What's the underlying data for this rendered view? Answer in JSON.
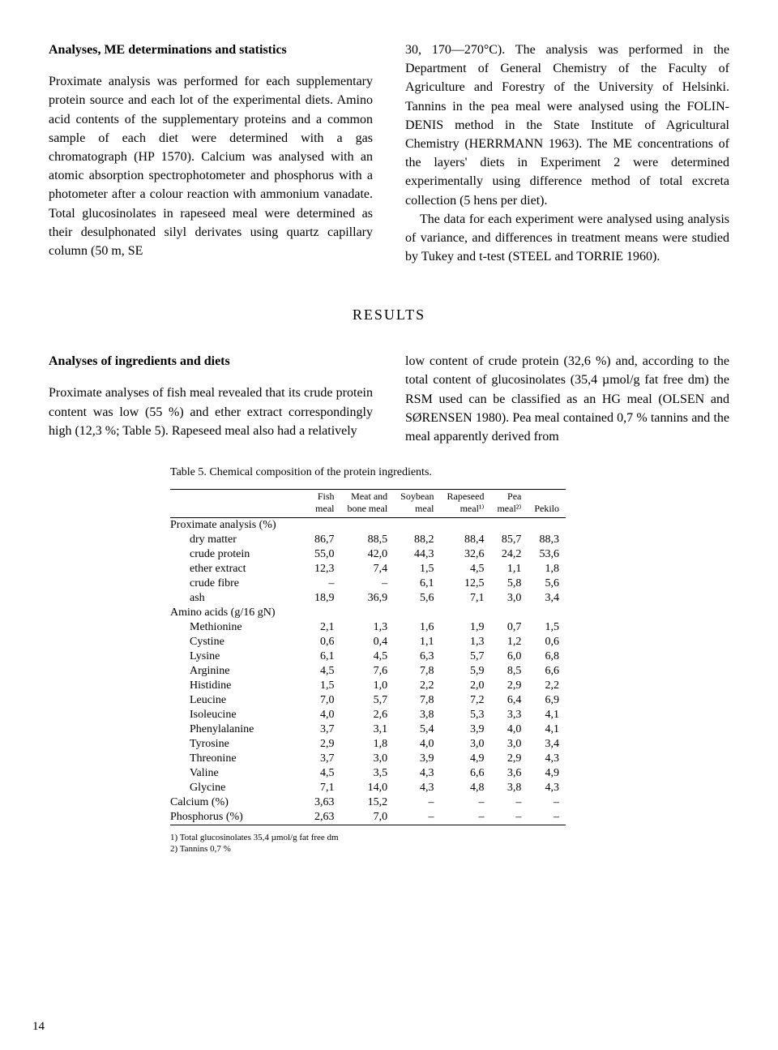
{
  "heading1": "Analyses, ME determinations and statistics",
  "para1a": "Proximate analysis was performed for each supplementary protein source and each lot of the experimental diets. Amino acid contents of the supplementary proteins and a common sample of each diet were determined with a gas chromatograph (HP 1570). Calcium was analysed with an atomic absorption spectrophotometer and phosphorus with a photometer after a colour reaction with ammonium vanadate. Total glucosinolates in rapeseed meal were determined as their desulphonated silyl derivates using quartz capillary column (50 m, SE",
  "para1b_part1": "30, 170—270°C). The analysis was performed in the Department of General Chemistry of the Faculty of Agriculture and Forestry of the University of Helsinki. Tannins in the pea meal were analysed using the F",
  "para1b_part2": "OLIN-DENIS",
  "para1b_part3": " method in the State Institute of Agricultural Chemistry (H",
  "para1b_part4": "ERRMANN",
  "para1b_part5": " 1963). The ME concentrations of the layers' diets in Experiment 2 were determined experimentally using difference method of total excreta collection (5 hens per diet).",
  "para1c_part1": "The data for each experiment were analysed using analysis of variance, and differences in treatment means were studied by Tukey and t-test (S",
  "para1c_part2": "TEEL",
  "para1c_part3": " and T",
  "para1c_part4": "ORRIE",
  "para1c_part5": " 1960).",
  "results_heading": "RESULTS",
  "heading2": "Analyses of ingredients and diets",
  "para2a": "Proximate analyses of fish meal revealed that its crude protein content was low (55 %) and ether extract correspondingly high (12,3 %; Table 5). Rapeseed meal also had a relatively",
  "para2b_part1": "low content of crude protein (32,6 %) and, according to the total content of glucosinolates (35,4 µmol/g fat free dm) the RSM used can be classified as an HG meal (O",
  "para2b_part2": "LSEN",
  "para2b_part3": " and S",
  "para2b_part4": "ØRENSEN",
  "para2b_part5": " 1980). Pea meal contained 0,7 % tannins and the meal apparently derived from",
  "table_caption": "Table 5. Chemical composition of the protein ingredients.",
  "table": {
    "columns": [
      "",
      "Fish\nmeal",
      "Meat and\nbone meal",
      "Soybean\nmeal",
      "Rapeseed\nmeal¹⁾",
      "Pea\nmeal²⁾",
      "Pekilo"
    ],
    "sections": [
      {
        "title": "Proximate analysis (%)",
        "rows": [
          [
            "dry matter",
            "86,7",
            "88,5",
            "88,2",
            "88,4",
            "85,7",
            "88,3"
          ],
          [
            "crude protein",
            "55,0",
            "42,0",
            "44,3",
            "32,6",
            "24,2",
            "53,6"
          ],
          [
            "ether extract",
            "12,3",
            "7,4",
            "1,5",
            "4,5",
            "1,1",
            "1,8"
          ],
          [
            "crude fibre",
            "–",
            "–",
            "6,1",
            "12,5",
            "5,8",
            "5,6"
          ],
          [
            "ash",
            "18,9",
            "36,9",
            "5,6",
            "7,1",
            "3,0",
            "3,4"
          ]
        ]
      },
      {
        "title": "Amino acids (g/16 gN)",
        "rows": [
          [
            "Methionine",
            "2,1",
            "1,3",
            "1,6",
            "1,9",
            "0,7",
            "1,5"
          ],
          [
            "Cystine",
            "0,6",
            "0,4",
            "1,1",
            "1,3",
            "1,2",
            "0,6"
          ],
          [
            "Lysine",
            "6,1",
            "4,5",
            "6,3",
            "5,7",
            "6,0",
            "6,8"
          ],
          [
            "Arginine",
            "4,5",
            "7,6",
            "7,8",
            "5,9",
            "8,5",
            "6,6"
          ],
          [
            "Histidine",
            "1,5",
            "1,0",
            "2,2",
            "2,0",
            "2,9",
            "2,2"
          ],
          [
            "Leucine",
            "7,0",
            "5,7",
            "7,8",
            "7,2",
            "6,4",
            "6,9"
          ],
          [
            "Isoleucine",
            "4,0",
            "2,6",
            "3,8",
            "5,3",
            "3,3",
            "4,1"
          ],
          [
            "Phenylalanine",
            "3,7",
            "3,1",
            "5,4",
            "3,9",
            "4,0",
            "4,1"
          ],
          [
            "Tyrosine",
            "2,9",
            "1,8",
            "4,0",
            "3,0",
            "3,0",
            "3,4"
          ],
          [
            "Threonine",
            "3,7",
            "3,0",
            "3,9",
            "4,9",
            "2,9",
            "4,3"
          ],
          [
            "Valine",
            "4,5",
            "3,5",
            "4,3",
            "6,6",
            "3,6",
            "4,9"
          ],
          [
            "Glycine",
            "7,1",
            "14,0",
            "4,3",
            "4,8",
            "3,8",
            "4,3"
          ]
        ]
      }
    ],
    "bottom_rows": [
      [
        "Calcium (%)",
        "3,63",
        "15,2",
        "–",
        "–",
        "–",
        "–"
      ],
      [
        "Phosphorus (%)",
        "2,63",
        "7,0",
        "–",
        "–",
        "–",
        "–"
      ]
    ]
  },
  "footnote1": "1) Total glucosinolates 35,4 µmol/g fat free dm",
  "footnote2": "2) Tannins 0,7 %",
  "page_number": "14"
}
